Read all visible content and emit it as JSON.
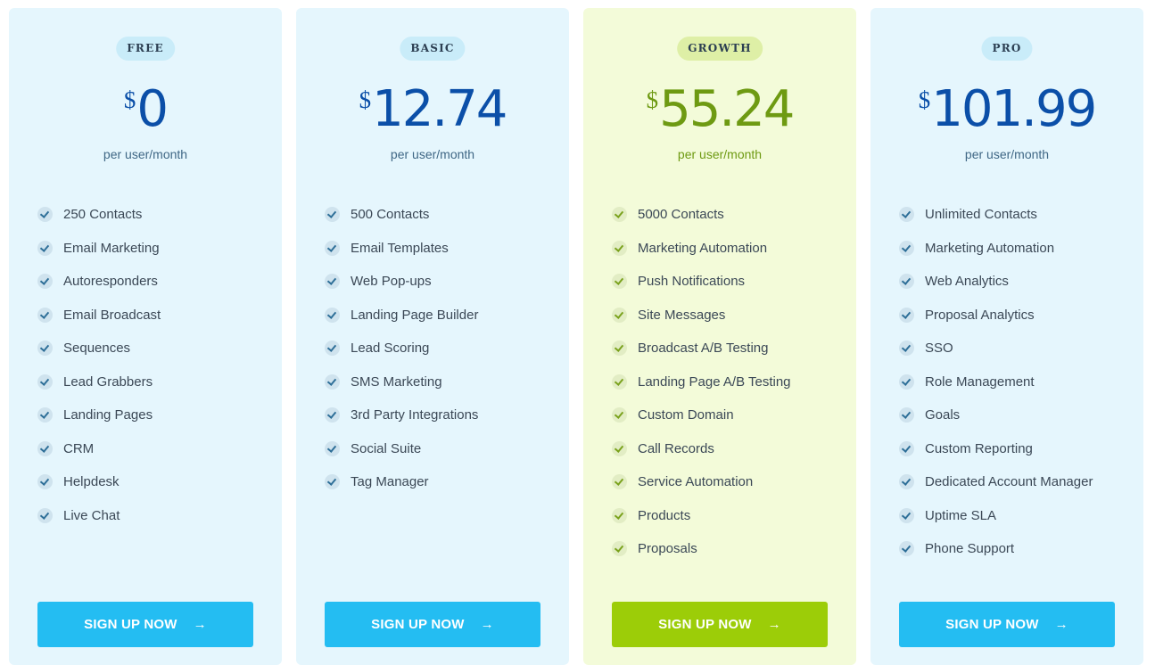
{
  "plans": [
    {
      "badge": "FREE",
      "currency": "$",
      "price": "0",
      "period": "per user/month",
      "features": [
        "250 Contacts",
        "Email Marketing",
        "Autoresponders",
        "Email Broadcast",
        "Sequences",
        "Lead Grabbers",
        "Landing Pages",
        "CRM",
        "Helpdesk",
        "Live Chat"
      ],
      "cta": "SIGN UP NOW"
    },
    {
      "badge": "BASIC",
      "currency": "$",
      "price": "12.74",
      "period": "per user/month",
      "features": [
        "500 Contacts",
        "Email Templates",
        "Web Pop-ups",
        "Landing Page Builder",
        "Lead Scoring",
        "SMS Marketing",
        "3rd Party Integrations",
        "Social Suite",
        "Tag Manager"
      ],
      "cta": "SIGN UP NOW"
    },
    {
      "badge": "GROWTH",
      "currency": "$",
      "price": "55.24",
      "period": "per user/month",
      "features": [
        "5000 Contacts",
        "Marketing Automation",
        "Push Notifications",
        "Site Messages",
        "Broadcast A/B Testing",
        "Landing Page A/B Testing",
        "Custom Domain",
        "Call Records",
        "Service Automation",
        "Products",
        "Proposals"
      ],
      "cta": "SIGN UP NOW"
    },
    {
      "badge": "PRO",
      "currency": "$",
      "price": "101.99",
      "period": "per user/month",
      "features": [
        "Unlimited Contacts",
        "Marketing Automation",
        "Web Analytics",
        "Proposal Analytics",
        "SSO",
        "Role Management",
        "Goals",
        "Custom Reporting",
        "Dedicated Account Manager",
        "Uptime SLA",
        "Phone Support"
      ],
      "cta": "SIGN UP NOW"
    }
  ],
  "icons": {
    "feature_check": "check-circle-icon",
    "cta_arrow": "arrow-right-icon"
  },
  "colors": {
    "primary": "#24bdf2",
    "accent": "#9ccd08",
    "price_blue": "#0b4fa8",
    "price_green": "#6e9a12"
  }
}
